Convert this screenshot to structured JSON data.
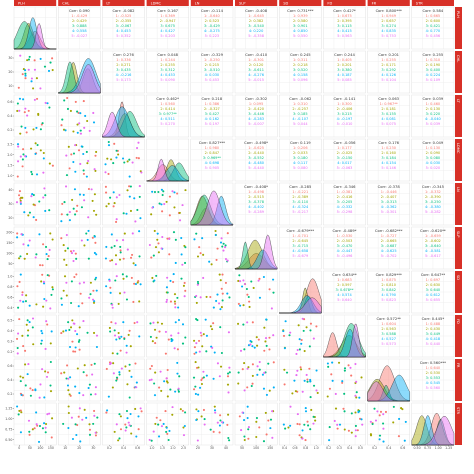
{
  "chart_data": {
    "type": "scatter-matrix",
    "variables": [
      "PLH",
      "CHL",
      "LT",
      "LDMC",
      "LN",
      "SLP",
      "SD",
      "FD",
      "FR",
      "STR"
    ],
    "group_colors": [
      "#f8766d",
      "#a3a500",
      "#00bf7d",
      "#00b0f6",
      "#e76bf3"
    ],
    "group_labels": [
      "1",
      "2",
      "3",
      "4",
      "5"
    ],
    "panel_header_color": "#d73027",
    "grid_color": "#ebebeb",
    "correlations": [
      {
        "row": 1,
        "col": 2,
        "title": "Corr: 0.090",
        "groups": [
          "1: -0.429",
          "2: 0.429",
          "3: 0.888",
          "4: 0.558",
          "5: -0.027"
        ]
      },
      {
        "row": 1,
        "col": 3,
        "title": "Corr: -0.082",
        "groups": [
          "1: -0.525",
          "2: -0.355",
          "3: -0.067",
          "4: 0.453",
          "5: 0.352"
        ]
      },
      {
        "row": 1,
        "col": 4,
        "title": "Corr: 0.167",
        "groups": [
          "1: 0.369",
          "2: -0.947",
          "3: 0.675",
          "4: 0.427",
          "5: 0.203"
        ]
      },
      {
        "row": 1,
        "col": 5,
        "title": "Corr: -0.114",
        "groups": [
          "1: -0.640",
          "2: 0.523",
          "3: -0.429",
          "4: -0.275",
          "5: 0.223"
        ]
      },
      {
        "row": 1,
        "col": 6,
        "title": "Corr: -0.408",
        "groups": [
          "1: -0.645",
          "2: 0.382",
          "3: -0.540",
          "4: 0.220",
          "5: -0.358"
        ]
      },
      {
        "row": 1,
        "col": 7,
        "title": "Corr: 0.731***",
        "groups": [
          "1: 0.939",
          "2: 0.580",
          "3: 0.901",
          "4: 0.850",
          "5: 0.550"
        ]
      },
      {
        "row": 1,
        "col": 8,
        "title": "Corr: 0.427*",
        "groups": [
          "1: 0.675",
          "2: 0.395",
          "3: 0.115",
          "4: 0.415",
          "5: 0.563"
        ]
      },
      {
        "row": 1,
        "col": 9,
        "title": "Corr: 0.800***",
        "groups": [
          "1: 0.949",
          "2: 0.657",
          "3: 0.274",
          "4: 0.835",
          "5: 0.753"
        ]
      },
      {
        "row": 1,
        "col": 10,
        "title": "Corr: 0.584",
        "groups": [
          "1: 0.665",
          "2: 0.600",
          "3: 0.421",
          "4: 0.770",
          "5: 0.456"
        ]
      },
      {
        "row": 2,
        "col": 3,
        "title": "Corr: 0.276",
        "groups": [
          "1: 0.336",
          "2: 0.271",
          "3: 0.435",
          "4: -0.216",
          "5: 0.173"
        ]
      },
      {
        "row": 2,
        "col": 4,
        "title": "Corr: 0.048",
        "groups": [
          "1: 0.244",
          "2: 0.255",
          "3: 0.312",
          "4: 0.453",
          "5: 0.090"
        ]
      },
      {
        "row": 2,
        "col": 5,
        "title": "Corr: -0.329",
        "groups": [
          "1: -0.250",
          "2: 0.215",
          "3: -0.510",
          "4: 0.030",
          "5: 0.453"
        ]
      },
      {
        "row": 2,
        "col": 6,
        "title": "Corr: -0.410",
        "groups": [
          "1: -0.301",
          "2: 0.120",
          "3: -0.611",
          "4: -0.276",
          "5: -0.015"
        ]
      },
      {
        "row": 2,
        "col": 7,
        "title": "Corr: 0.245",
        "groups": [
          "1: 0.311",
          "2: 0.218",
          "3: 0.520",
          "4: 0.158",
          "5: 0.096"
        ]
      },
      {
        "row": 2,
        "col": 8,
        "title": "Corr: 0.244",
        "groups": [
          "1: 0.405",
          "2: 0.201",
          "3: 0.380",
          "4: 0.187",
          "5: 0.085"
        ]
      },
      {
        "row": 2,
        "col": 9,
        "title": "Corr: 0.201",
        "groups": [
          "1: 0.255",
          "2: 0.171",
          "3: 0.292",
          "4: 0.126",
          "5: 0.104"
        ]
      },
      {
        "row": 2,
        "col": 10,
        "title": "Corr: 0.255",
        "groups": [
          "1: 0.310",
          "2: 0.190",
          "3: 0.400",
          "4: 0.224",
          "5: 0.109"
        ]
      },
      {
        "row": 3,
        "col": 4,
        "title": "Corr: 0.462*",
        "groups": [
          "1: 0.560",
          "2: 0.414",
          "3: 0.977**",
          "4: 0.511",
          "5: 0.270"
        ]
      },
      {
        "row": 3,
        "col": 5,
        "title": "Corr: 0.218",
        "groups": [
          "1: 0.386",
          "2: -0.327",
          "3: 0.427",
          "4: 0.162",
          "5: 0.197"
        ]
      },
      {
        "row": 3,
        "col": 6,
        "title": "Corr: -0.302",
        "groups": [
          "1: 0.095",
          "2: -0.420",
          "3: -0.446",
          "4: -0.283",
          "5: -0.007"
        ]
      },
      {
        "row": 3,
        "col": 7,
        "title": "Corr: -0.062",
        "groups": [
          "1: 0.310",
          "2: -0.257",
          "3: 0.185",
          "4: -0.107",
          "5: 0.044"
        ]
      },
      {
        "row": 3,
        "col": 8,
        "title": "Corr: -0.141",
        "groups": [
          "1: 0.300",
          "2: -0.406",
          "3: 0.215",
          "4: -0.197",
          "5: -0.010"
        ]
      },
      {
        "row": 3,
        "col": 9,
        "title": "Corr: 0.063",
        "groups": [
          "1: 0.967**",
          "2: 0.181",
          "3: 0.155",
          "4: 0.081",
          "5: 0.075"
        ]
      },
      {
        "row": 3,
        "col": 10,
        "title": "Corr: 0.039",
        "groups": [
          "1: 0.460",
          "2: 0.130",
          "3: 0.220",
          "4: -0.040",
          "5: 0.039"
        ]
      },
      {
        "row": 4,
        "col": 5,
        "title": "Corr: 0.827***",
        "groups": [
          "1: 0.980",
          "2: 0.847",
          "3: 0.969**",
          "4: 0.698",
          "5: 0.905"
        ]
      },
      {
        "row": 4,
        "col": 6,
        "title": "Corr: -0.498*",
        "groups": [
          "1: -0.625",
          "2: -0.440",
          "3: -0.552",
          "4: -0.480",
          "5: -0.440"
        ]
      },
      {
        "row": 4,
        "col": 7,
        "title": "Corr: 0.119",
        "groups": [
          "1: 0.206",
          "2: 0.033",
          "3: 0.180",
          "4: 0.117",
          "5: 0.080"
        ]
      },
      {
        "row": 4,
        "col": 8,
        "title": "Corr: -0.056",
        "groups": [
          "1: 0.177",
          "2: -0.025",
          "3: -0.150",
          "4: 0.017",
          "5: -0.063"
        ]
      },
      {
        "row": 4,
        "col": 9,
        "title": "Corr: 0.176",
        "groups": [
          "1: 0.230",
          "2: 0.160",
          "3: 0.184",
          "4: 0.154",
          "5: 0.146"
        ]
      },
      {
        "row": 4,
        "col": 10,
        "title": "Corr: 0.049",
        "groups": [
          "1: 0.130",
          "2: 0.090",
          "3: 0.080",
          "4: 0.030",
          "5: 0.020"
        ]
      },
      {
        "row": 5,
        "col": 6,
        "title": "Corr: -0.408*",
        "groups": [
          "1: -0.498",
          "2: -0.515",
          "3: -0.378",
          "4: -0.402",
          "5: -0.289"
        ]
      },
      {
        "row": 5,
        "col": 7,
        "title": "Corr: -0.285",
        "groups": [
          "1: -0.221",
          "2: -0.389",
          "3: -0.110",
          "4: -0.324",
          "5: -0.217"
        ]
      },
      {
        "row": 5,
        "col": 8,
        "title": "Corr: -0.346",
        "groups": [
          "1: -0.381",
          "2: -0.416",
          "3: -0.205",
          "4: -0.332",
          "5: -0.298"
        ]
      },
      {
        "row": 5,
        "col": 9,
        "title": "Corr: -0.378",
        "groups": [
          "1: -0.446",
          "2: -0.407",
          "3: -0.313",
          "4: -0.362",
          "5: -0.301"
        ]
      },
      {
        "row": 5,
        "col": 10,
        "title": "Corr: -0.345",
        "groups": [
          "1: -0.332",
          "2: -0.390",
          "3: -0.250",
          "4: -0.380",
          "5: -0.282"
        ]
      },
      {
        "row": 6,
        "col": 7,
        "title": "Corr: -0.679***",
        "groups": [
          "1: -0.701",
          "2: -0.645",
          "3: -0.715",
          "4: -0.658",
          "5: -0.679"
        ]
      },
      {
        "row": 6,
        "col": 8,
        "title": "Corr: -0.489*",
        "groups": [
          "1: -0.530",
          "2: -0.503",
          "3: -0.470",
          "4: -0.447",
          "5: -0.496"
        ]
      },
      {
        "row": 6,
        "col": 9,
        "title": "Corr: -0.682***",
        "groups": [
          "1: -0.727",
          "2: -0.665",
          "3: -0.687",
          "4: -0.625",
          "5: -0.702"
        ]
      },
      {
        "row": 6,
        "col": 10,
        "title": "Corr: -0.620**",
        "groups": [
          "1: -0.659",
          "2: -0.602",
          "3: -0.640",
          "4: -0.581",
          "5: -0.617"
        ]
      },
      {
        "row": 7,
        "col": 8,
        "title": "Corr: 0.634**",
        "groups": [
          "1: 0.683",
          "2: 0.597",
          "3: 0.678**",
          "4: 0.574",
          "5: 0.640"
        ]
      },
      {
        "row": 7,
        "col": 9,
        "title": "Corr: 0.829***",
        "groups": [
          "1: 0.875",
          "2: 0.810",
          "3: 0.842",
          "4: 0.790",
          "5: 0.823"
        ]
      },
      {
        "row": 7,
        "col": 10,
        "title": "Corr: 0.647**",
        "groups": [
          "1: 0.697",
          "2: 0.630",
          "3: 0.640",
          "4: 0.612",
          "5: 0.655"
        ]
      },
      {
        "row": 8,
        "col": 9,
        "title": "Corr: 0.572**",
        "groups": [
          "1: 0.604",
          "2: 0.563",
          "3: 0.588",
          "4: 0.527",
          "5: 0.573"
        ]
      },
      {
        "row": 8,
        "col": 10,
        "title": "Corr: 0.445*",
        "groups": [
          "1: 0.488",
          "2: 0.430",
          "3: 0.449",
          "4: 0.418",
          "5: 0.440"
        ]
      },
      {
        "row": 9,
        "col": 10,
        "title": "Corr: 0.560***",
        "groups": [
          "1: 0.640",
          "2: 0.530",
          "3: 0.553",
          "4: 0.545",
          "5: 0.560"
        ]
      }
    ],
    "x_tick_labels": [
      [
        "0",
        "50",
        "100",
        "150"
      ],
      [
        "10",
        "20",
        "30"
      ],
      [
        "0.2",
        "0.4",
        "0.6"
      ],
      [
        "1.0",
        "1.5",
        "2.0",
        "2.5"
      ],
      [
        "20",
        "30",
        "40"
      ],
      [
        "50",
        "100",
        "150"
      ],
      [
        "0.4",
        "0.6",
        "0.8",
        "1.0"
      ],
      [
        "0.2",
        "0.3",
        "0.4",
        "0.5"
      ],
      [
        "0.2",
        "0.4",
        "0.6"
      ],
      [
        "0.50",
        "0.75",
        "1.00",
        "1.25"
      ]
    ],
    "y_tick_labels": [
      [],
      [
        "10",
        "20",
        "30"
      ],
      [
        "0.2",
        "0.4",
        "0.6"
      ],
      [
        "1.0",
        "1.5",
        "2.0",
        "2.5"
      ],
      [
        "20",
        "30",
        "40"
      ],
      [
        "50",
        "100",
        "150",
        "200"
      ],
      [
        "0.4",
        "0.6",
        "0.8",
        "1.0"
      ],
      [
        "0.2",
        "0.3",
        "0.4",
        "0.5"
      ],
      [
        "0.2",
        "0.4",
        "0.6"
      ],
      [
        "0.50",
        "0.75",
        "1.00",
        "1.25"
      ]
    ]
  }
}
